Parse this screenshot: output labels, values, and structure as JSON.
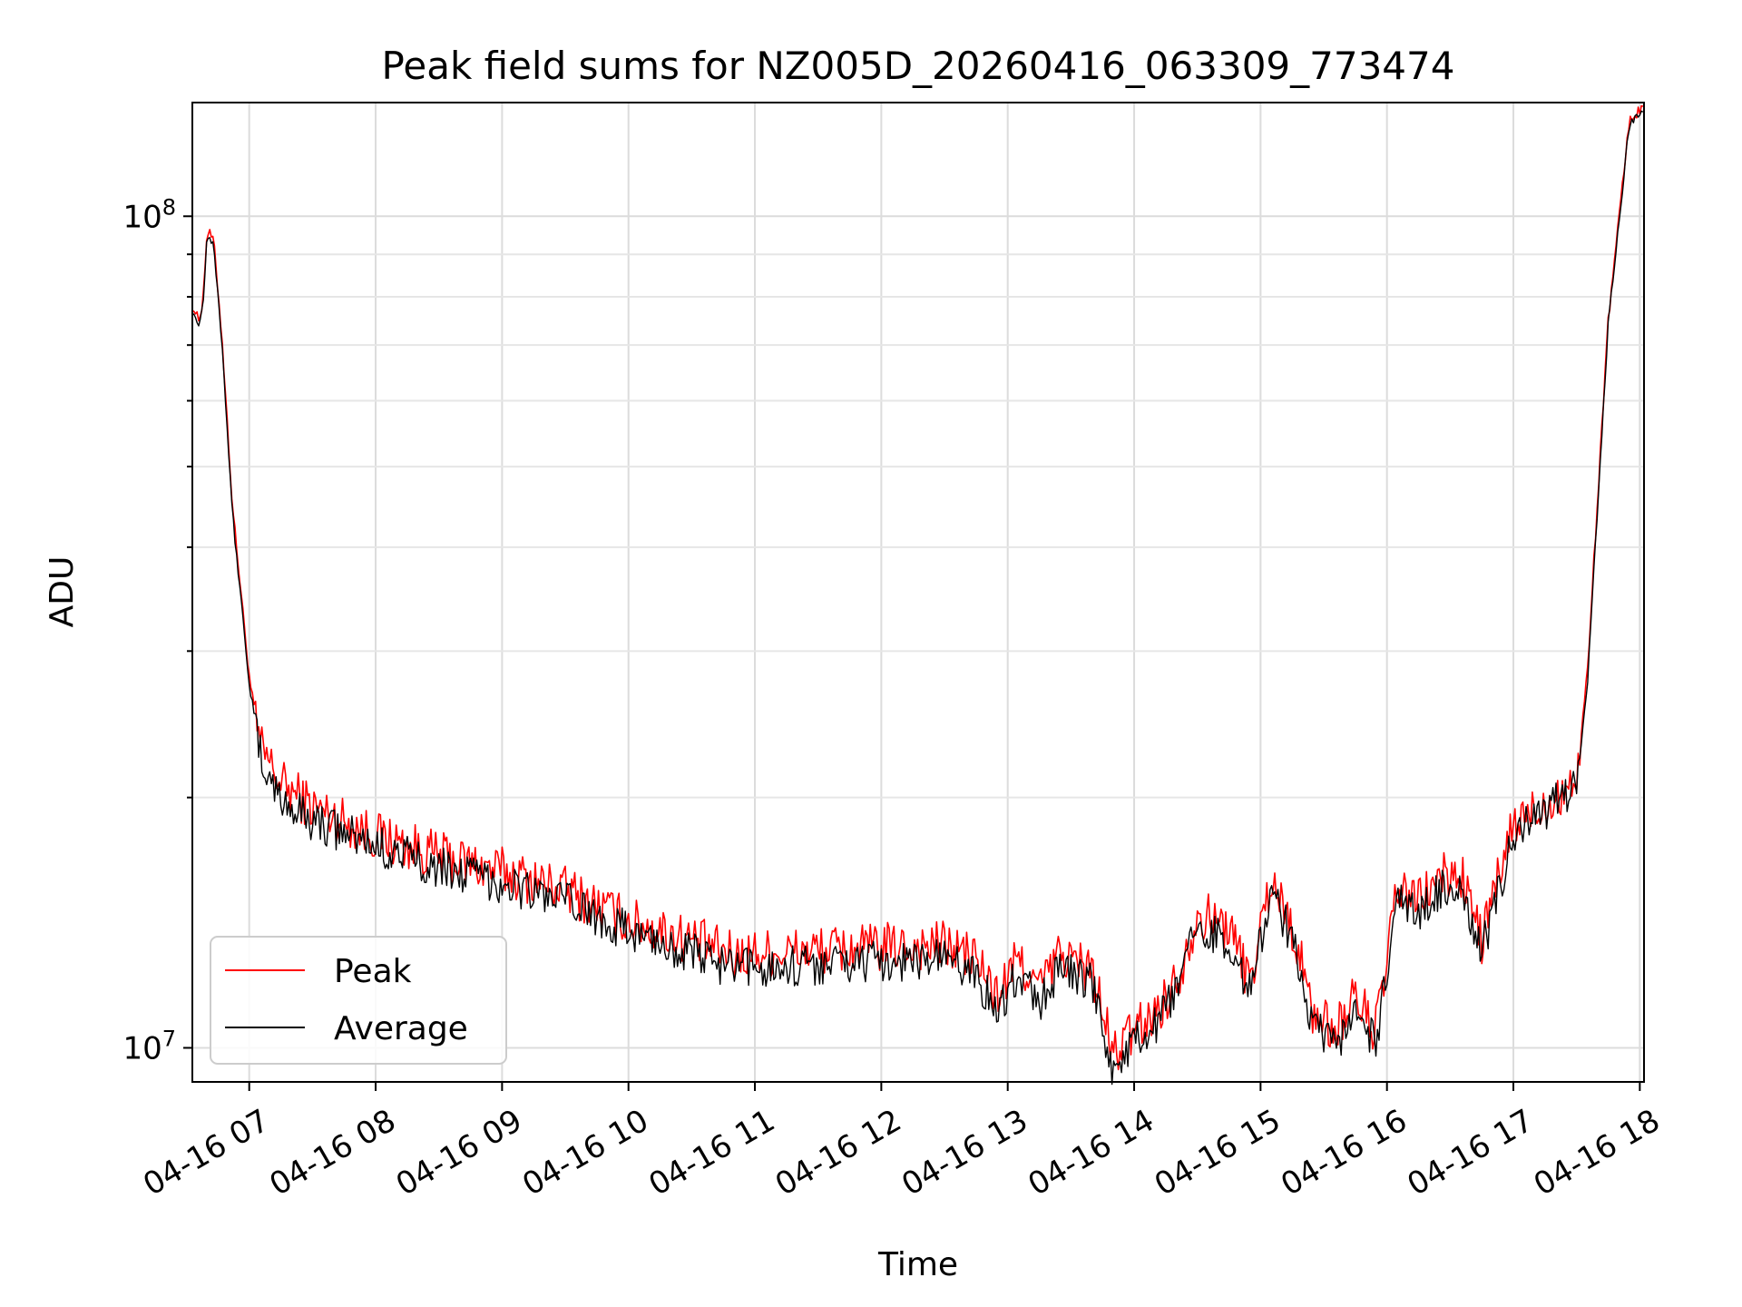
{
  "chart_data": {
    "type": "line",
    "title": "Peak field sums for NZ005D_20260416_063309_773474",
    "xlabel": "Time",
    "ylabel": "ADU",
    "x_axis_type": "datetime",
    "xlim": [
      "2026-04-16 06:33",
      "2026-04-16 18:02"
    ],
    "ylim": [
      9100000,
      137000000
    ],
    "y_scale": "log",
    "grid": "both",
    "legend_position": "lower-left",
    "x_ticks": [
      {
        "t": "2026-04-16 07:00",
        "label": "04-16 07"
      },
      {
        "t": "2026-04-16 08:00",
        "label": "04-16 08"
      },
      {
        "t": "2026-04-16 09:00",
        "label": "04-16 09"
      },
      {
        "t": "2026-04-16 10:00",
        "label": "04-16 10"
      },
      {
        "t": "2026-04-16 11:00",
        "label": "04-16 11"
      },
      {
        "t": "2026-04-16 12:00",
        "label": "04-16 12"
      },
      {
        "t": "2026-04-16 13:00",
        "label": "04-16 13"
      },
      {
        "t": "2026-04-16 14:00",
        "label": "04-16 14"
      },
      {
        "t": "2026-04-16 15:00",
        "label": "04-16 15"
      },
      {
        "t": "2026-04-16 16:00",
        "label": "04-16 16"
      },
      {
        "t": "2026-04-16 17:00",
        "label": "04-16 17"
      },
      {
        "t": "2026-04-16 18:00",
        "label": "04-16 18"
      }
    ],
    "y_major_ticks": [
      {
        "value": 10000000,
        "base": "10",
        "exp": "7"
      },
      {
        "value": 100000000,
        "base": "10",
        "exp": "8"
      }
    ],
    "series": [
      {
        "name": "Peak",
        "color": "#ff0000",
        "noise_amplitude": 0.06,
        "points": [
          [
            "2026-04-16 06:33",
            78000000
          ],
          [
            "2026-04-16 06:36",
            75000000
          ],
          [
            "2026-04-16 06:38",
            79000000
          ],
          [
            "2026-04-16 06:40",
            96000000
          ],
          [
            "2026-04-16 06:43",
            94000000
          ],
          [
            "2026-04-16 06:47",
            72000000
          ],
          [
            "2026-04-16 06:52",
            45000000
          ],
          [
            "2026-04-16 07:00",
            28000000
          ],
          [
            "2026-04-16 07:05",
            23000000
          ],
          [
            "2026-04-16 07:15",
            20800000
          ],
          [
            "2026-04-16 07:30",
            19500000
          ],
          [
            "2026-04-16 08:00",
            18000000
          ],
          [
            "2026-04-16 08:30",
            17000000
          ],
          [
            "2026-04-16 09:00",
            16300000
          ],
          [
            "2026-04-16 09:30",
            15500000
          ],
          [
            "2026-04-16 10:00",
            14200000
          ],
          [
            "2026-04-16 10:30",
            13500000
          ],
          [
            "2026-04-16 10:50",
            12900000
          ],
          [
            "2026-04-16 11:00",
            13000000
          ],
          [
            "2026-04-16 11:30",
            13100000
          ],
          [
            "2026-04-16 12:00",
            13200000
          ],
          [
            "2026-04-16 12:30",
            13300000
          ],
          [
            "2026-04-16 12:45",
            12800000
          ],
          [
            "2026-04-16 12:55",
            11500000
          ],
          [
            "2026-04-16 13:05",
            12800000
          ],
          [
            "2026-04-16 13:15",
            11800000
          ],
          [
            "2026-04-16 13:25",
            13000000
          ],
          [
            "2026-04-16 13:40",
            12400000
          ],
          [
            "2026-04-16 13:50",
            9800000
          ],
          [
            "2026-04-16 14:00",
            10500000
          ],
          [
            "2026-04-16 14:10",
            11000000
          ],
          [
            "2026-04-16 14:20",
            12000000
          ],
          [
            "2026-04-16 14:30",
            14500000
          ],
          [
            "2026-04-16 14:45",
            14000000
          ],
          [
            "2026-04-16 14:55",
            12000000
          ],
          [
            "2026-04-16 15:05",
            16000000
          ],
          [
            "2026-04-16 15:15",
            14000000
          ],
          [
            "2026-04-16 15:25",
            11000000
          ],
          [
            "2026-04-16 15:35",
            10500000
          ],
          [
            "2026-04-16 15:45",
            11500000
          ],
          [
            "2026-04-16 15:55",
            10500000
          ],
          [
            "2026-04-16 16:05",
            15500000
          ],
          [
            "2026-04-16 16:15",
            15000000
          ],
          [
            "2026-04-16 16:25",
            16000000
          ],
          [
            "2026-04-16 16:35",
            16200000
          ],
          [
            "2026-04-16 16:45",
            13500000
          ],
          [
            "2026-04-16 17:00",
            18500000
          ],
          [
            "2026-04-16 17:30",
            21000000
          ],
          [
            "2026-04-16 17:35",
            28000000
          ],
          [
            "2026-04-16 17:45",
            75000000
          ],
          [
            "2026-04-16 17:55",
            130000000
          ],
          [
            "2026-04-16 18:02",
            136000000
          ]
        ]
      },
      {
        "name": "Average",
        "color": "#000000",
        "noise_amplitude": 0.05,
        "points": [
          [
            "2026-04-16 06:33",
            77000000
          ],
          [
            "2026-04-16 06:36",
            74000000
          ],
          [
            "2026-04-16 06:38",
            78000000
          ],
          [
            "2026-04-16 06:40",
            95000000
          ],
          [
            "2026-04-16 06:43",
            93000000
          ],
          [
            "2026-04-16 06:47",
            71000000
          ],
          [
            "2026-04-16 06:52",
            44000000
          ],
          [
            "2026-04-16 07:00",
            27500000
          ],
          [
            "2026-04-16 07:05",
            22500000
          ],
          [
            "2026-04-16 07:15",
            19800000
          ],
          [
            "2026-04-16 07:30",
            18800000
          ],
          [
            "2026-04-16 08:00",
            17500000
          ],
          [
            "2026-04-16 08:30",
            16500000
          ],
          [
            "2026-04-16 09:00",
            15800000
          ],
          [
            "2026-04-16 09:30",
            15000000
          ],
          [
            "2026-04-16 10:00",
            13800000
          ],
          [
            "2026-04-16 10:30",
            13000000
          ],
          [
            "2026-04-16 10:50",
            12400000
          ],
          [
            "2026-04-16 11:00",
            12500000
          ],
          [
            "2026-04-16 11:30",
            12600000
          ],
          [
            "2026-04-16 12:00",
            12700000
          ],
          [
            "2026-04-16 12:30",
            12800000
          ],
          [
            "2026-04-16 12:45",
            12300000
          ],
          [
            "2026-04-16 12:55",
            11000000
          ],
          [
            "2026-04-16 13:05",
            12300000
          ],
          [
            "2026-04-16 13:15",
            11300000
          ],
          [
            "2026-04-16 13:25",
            12500000
          ],
          [
            "2026-04-16 13:40",
            11900000
          ],
          [
            "2026-04-16 13:50",
            9400000
          ],
          [
            "2026-04-16 14:00",
            10100000
          ],
          [
            "2026-04-16 14:10",
            10600000
          ],
          [
            "2026-04-16 14:20",
            11600000
          ],
          [
            "2026-04-16 14:30",
            14000000
          ],
          [
            "2026-04-16 14:45",
            13500000
          ],
          [
            "2026-04-16 14:55",
            11600000
          ],
          [
            "2026-04-16 15:05",
            15500000
          ],
          [
            "2026-04-16 15:15",
            13500000
          ],
          [
            "2026-04-16 15:25",
            10600000
          ],
          [
            "2026-04-16 15:35",
            10000000
          ],
          [
            "2026-04-16 15:45",
            11000000
          ],
          [
            "2026-04-16 15:55",
            10100000
          ],
          [
            "2026-04-16 16:05",
            15000000
          ],
          [
            "2026-04-16 16:15",
            14500000
          ],
          [
            "2026-04-16 16:25",
            15500000
          ],
          [
            "2026-04-16 16:35",
            15700000
          ],
          [
            "2026-04-16 16:45",
            13000000
          ],
          [
            "2026-04-16 17:00",
            18000000
          ],
          [
            "2026-04-16 17:30",
            20500000
          ],
          [
            "2026-04-16 17:35",
            27000000
          ],
          [
            "2026-04-16 17:45",
            74000000
          ],
          [
            "2026-04-16 17:55",
            129000000
          ],
          [
            "2026-04-16 18:02",
            135000000
          ]
        ]
      }
    ]
  }
}
